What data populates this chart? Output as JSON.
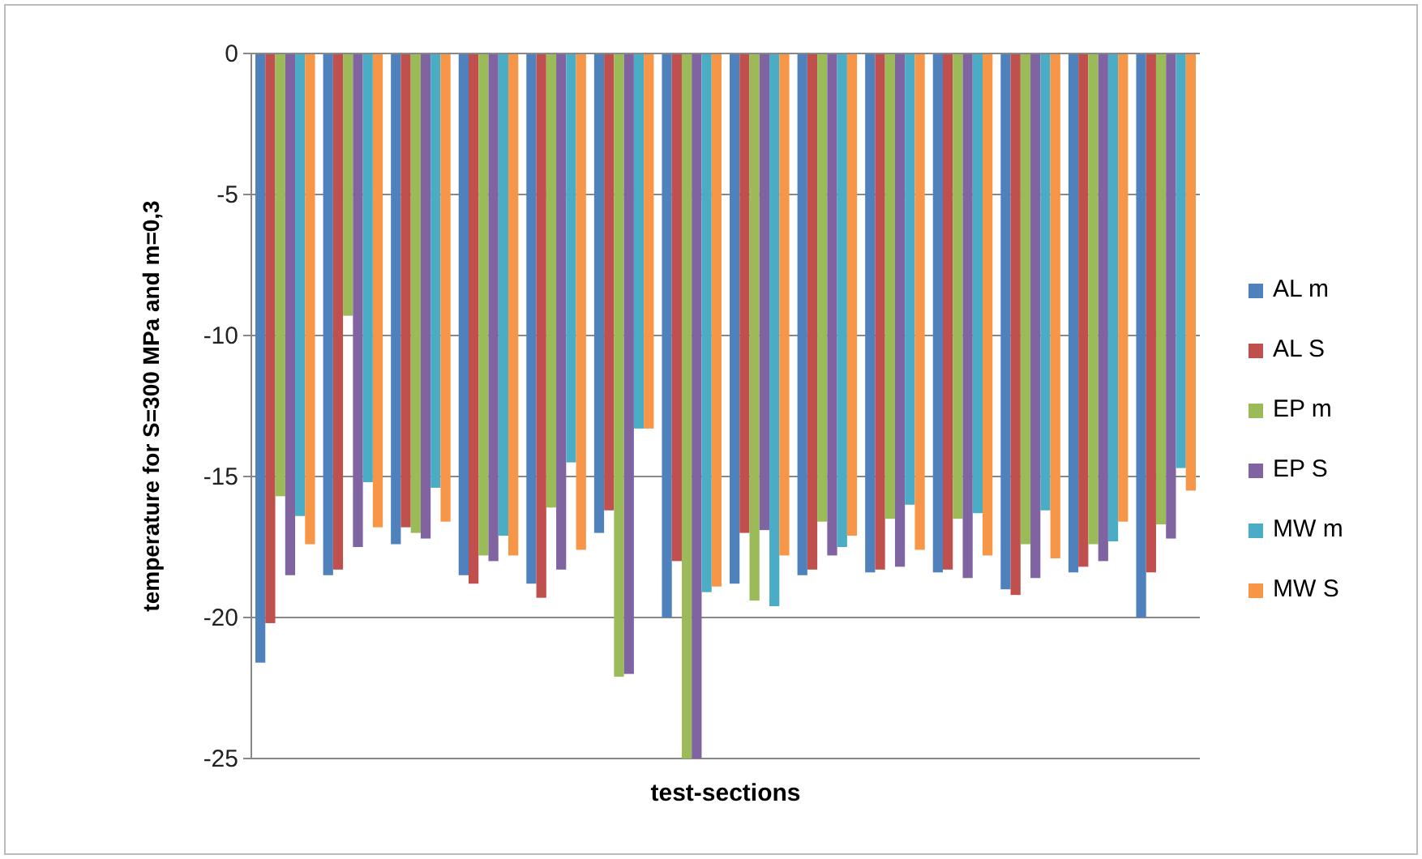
{
  "chart_data": {
    "type": "bar",
    "xlabel": "test-sections",
    "ylabel": "temperature for S=300 MPa and m=0,3",
    "categories": [
      null,
      null,
      null,
      null,
      null,
      null,
      null,
      null,
      null,
      null,
      null,
      null,
      null,
      null
    ],
    "series": [
      {
        "name": "AL m",
        "color": "#4f81bd",
        "values": [
          -21.6,
          -18.5,
          -17.4,
          -18.5,
          -18.8,
          -17.0,
          -20.0,
          -18.8,
          -18.5,
          -18.4,
          -18.4,
          -19.0,
          -18.4,
          -20.0
        ]
      },
      {
        "name": "AL S",
        "color": "#c0504d",
        "values": [
          -20.2,
          -18.3,
          -16.8,
          -18.8,
          -19.3,
          -16.2,
          -18.0,
          -17.0,
          -18.3,
          -18.3,
          -18.3,
          -19.2,
          -18.2,
          -18.4
        ]
      },
      {
        "name": "EP m",
        "color": "#9bbb59",
        "values": [
          -15.7,
          -9.3,
          -17.0,
          -17.8,
          -16.1,
          -22.1,
          -25,
          -19.4,
          -16.6,
          -16.5,
          -16.5,
          -17.4,
          -17.4,
          -16.7
        ]
      },
      {
        "name": "EP S",
        "color": "#8064a2",
        "values": [
          -18.5,
          -17.5,
          -17.2,
          -18.0,
          -18.3,
          -22.0,
          -25,
          -16.9,
          -17.8,
          -18.2,
          -18.6,
          -18.6,
          -18.0,
          -17.2
        ]
      },
      {
        "name": "MW m",
        "color": "#4bacc6",
        "values": [
          -16.4,
          -15.2,
          -15.4,
          -17.1,
          -14.5,
          -13.3,
          -19.1,
          -19.6,
          -17.5,
          -16.0,
          -16.3,
          -16.2,
          -17.3,
          -14.7
        ]
      },
      {
        "name": "MW S",
        "color": "#f79646",
        "values": [
          -17.4,
          -16.8,
          -16.6,
          -17.8,
          -17.6,
          -13.3,
          -18.9,
          -17.8,
          -17.1,
          -17.6,
          -17.8,
          -17.9,
          -16.6,
          -15.5
        ]
      }
    ],
    "ylim": [
      -25,
      0
    ],
    "yticks": [
      -25,
      -20,
      -15,
      -10,
      -5,
      0
    ],
    "grid": "y",
    "legend": "right"
  }
}
